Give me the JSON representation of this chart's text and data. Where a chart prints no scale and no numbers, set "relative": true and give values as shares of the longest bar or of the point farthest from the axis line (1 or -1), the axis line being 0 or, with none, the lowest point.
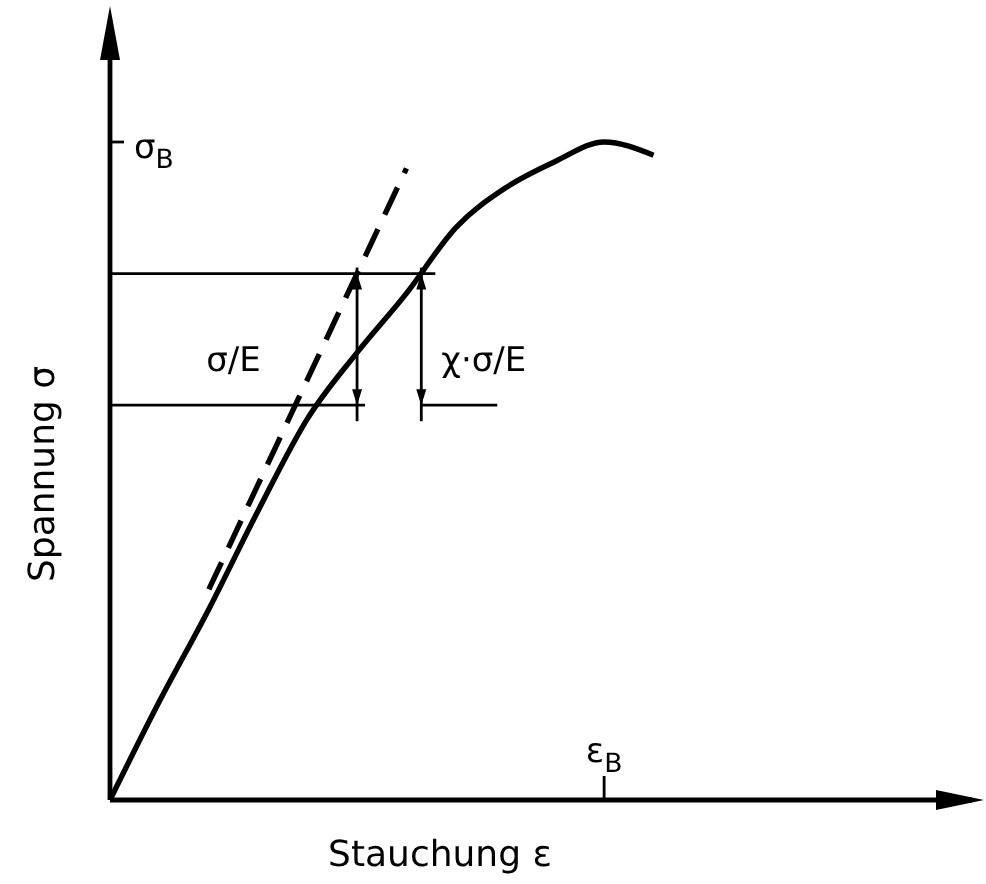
{
  "chart_data": {
    "type": "line",
    "relative": true,
    "xlabel": "Stauchung ε",
    "ylabel": "Spannung σ",
    "categories": [
      null,
      null,
      null,
      null,
      null,
      null,
      null,
      null,
      null,
      null,
      null,
      null,
      null,
      null,
      null,
      null,
      null,
      null
    ],
    "series": [
      {
        "color": "#000000",
        "line_style": "solid",
        "values": [
          0,
          0.15,
          0.29,
          0.44,
          0.58,
          0.68,
          0.77,
          0.87,
          0.93,
          0.97,
          1,
          0.98,
          null,
          null,
          null,
          null,
          null,
          null
        ]
      },
      {
        "color": "#000000",
        "line_style": "dashed",
        "values": [
          null,
          null,
          0.32,
          0.48,
          0.64,
          0.8,
          0.96,
          null,
          null,
          null,
          null,
          null,
          null,
          null,
          null,
          null,
          null,
          null
        ]
      }
    ],
    "ref_lines": [
      {
        "axis": "y",
        "value": 0.8
      },
      {
        "axis": "y",
        "value": 0.6
      }
    ],
    "annotations": [
      "σ$_{B}$",
      "ε$_{B}$",
      "σ/E",
      "χ·σ/E"
    ]
  }
}
